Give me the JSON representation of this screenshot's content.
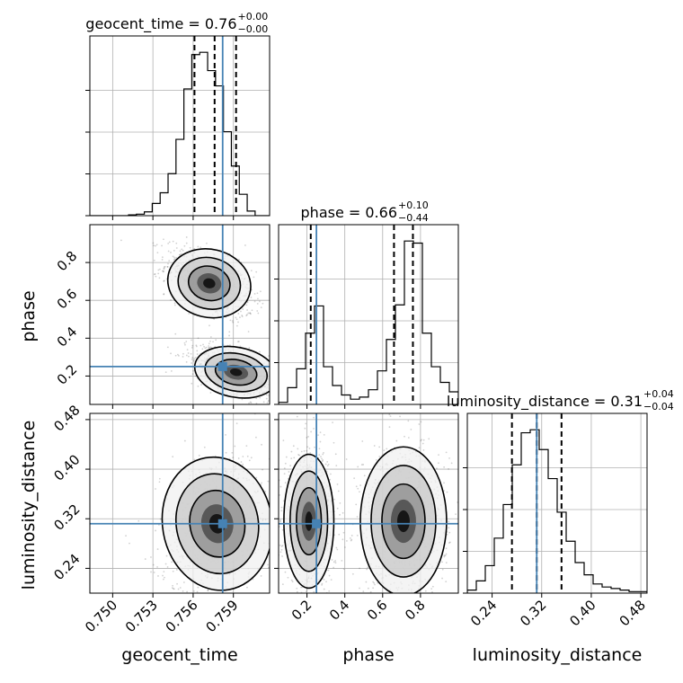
{
  "chart_data": {
    "type": "corner",
    "parameters": [
      {
        "name": "geocent_time",
        "label": "geocent_time",
        "range": [
          0.7483,
          0.7617
        ],
        "ticks": [
          0.75,
          0.753,
          0.756,
          0.759
        ],
        "tick_labels": [
          "0.750",
          "0.753",
          "0.756",
          "0.759"
        ],
        "title_text": "geocent_time = 0.76",
        "title_sup": "+0.00",
        "title_sub": "−0.00",
        "truth": 0.7582,
        "quantiles": [
          0.7561,
          0.7576,
          0.7592
        ],
        "histogram": {
          "bin_start": 0.75,
          "bin_width": 0.00059,
          "counts": [
            0,
            0,
            1,
            2,
            5,
            16,
            30,
            55,
            100,
            166,
            211,
            214,
            190,
            170,
            110,
            65,
            28,
            6
          ]
        }
      },
      {
        "name": "phase",
        "label": "phase",
        "range": [
          0.05,
          1.0
        ],
        "ticks": [
          0.2,
          0.4,
          0.6,
          0.8
        ],
        "tick_labels": [
          "0.2",
          "0.4",
          "0.6",
          "0.8"
        ],
        "title_text": "phase = 0.66",
        "title_sup": "+0.10",
        "title_sub": "−0.44",
        "truth": 0.25,
        "quantiles": [
          0.22,
          0.66,
          0.76
        ],
        "histogram": {
          "bin_start": 0.05,
          "bin_width": 0.0475,
          "counts": [
            2,
            16,
            34,
            68,
            94,
            36,
            18,
            9,
            5,
            7,
            14,
            32,
            62,
            95,
            156,
            154,
            68,
            36,
            21,
            12
          ]
        }
      },
      {
        "name": "luminosity_distance",
        "label": "luminosity_distance",
        "range": [
          0.2,
          0.49
        ],
        "ticks": [
          0.24,
          0.32,
          0.4,
          0.48
        ],
        "tick_labels": [
          "0.24",
          "0.32",
          "0.40",
          "0.48"
        ],
        "title_text": "luminosity_distance = 0.31",
        "title_sup": "+0.04",
        "title_sub": "−0.04",
        "truth": 0.312,
        "quantiles": [
          0.272,
          0.312,
          0.352
        ],
        "histogram": {
          "bin_start": 0.2,
          "bin_width": 0.0145,
          "counts": [
            2,
            8,
            18,
            36,
            58,
            84,
            105,
            107,
            94,
            75,
            53,
            34,
            20,
            12,
            6,
            4,
            3,
            2,
            1,
            1
          ]
        }
      }
    ],
    "pairs": [
      {
        "x": "geocent_time",
        "y": "phase",
        "modes": [
          {
            "cx": 0.7572,
            "cy": 0.69,
            "sx": 0.0013,
            "sy": 0.075,
            "rho": -0.5
          },
          {
            "cx": 0.7592,
            "cy": 0.22,
            "sx": 0.0013,
            "sy": 0.055,
            "rho": -0.55
          }
        ]
      },
      {
        "x": "geocent_time",
        "y": "luminosity_distance",
        "modes": [
          {
            "cx": 0.7578,
            "cy": 0.312,
            "sx": 0.0017,
            "sy": 0.045,
            "rho": 0.25
          }
        ]
      },
      {
        "x": "phase",
        "y": "luminosity_distance",
        "modes": [
          {
            "cx": 0.21,
            "cy": 0.316,
            "sx": 0.055,
            "sy": 0.045,
            "rho": 0.0
          },
          {
            "cx": 0.71,
            "cy": 0.316,
            "sx": 0.095,
            "sy": 0.05,
            "rho": 0.0
          }
        ]
      }
    ],
    "truth_color": "#4682b4",
    "grid": true
  }
}
